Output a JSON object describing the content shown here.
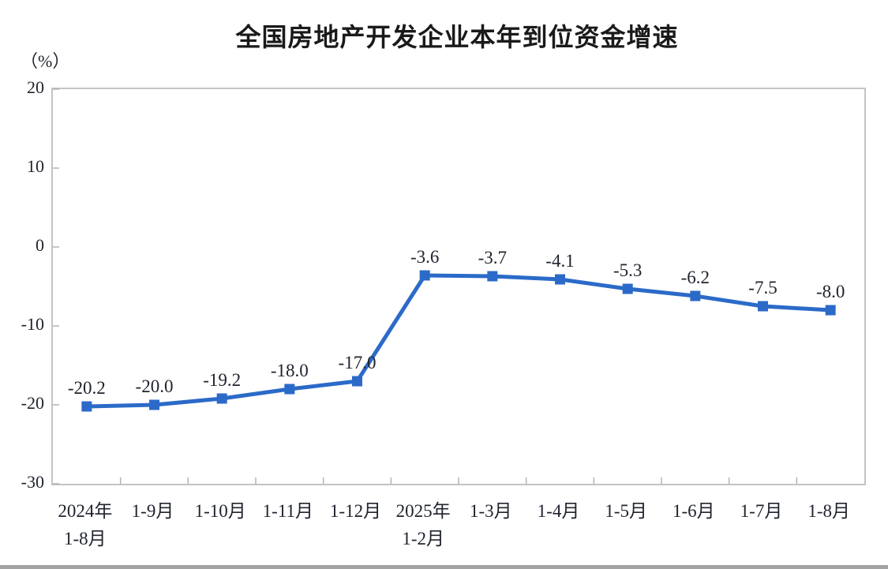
{
  "chart_data": {
    "type": "line",
    "title": "全国房地产开发企业本年到位资金增速",
    "unit_label": "（%）",
    "categories": [
      "2024年\n1-8月",
      "1-9月",
      "1-10月",
      "1-11月",
      "1-12月",
      "2025年\n1-2月",
      "1-3月",
      "1-4月",
      "1-5月",
      "1-6月",
      "1-7月",
      "1-8月"
    ],
    "values": [
      -20.2,
      -20.0,
      -19.2,
      -18.0,
      -17.0,
      -3.6,
      -3.7,
      -4.1,
      -5.3,
      -6.2,
      -7.5,
      -8.0
    ],
    "data_labels": [
      "-20.2",
      "-20.0",
      "-19.2",
      "-18.0",
      "-17.0",
      "-3.6",
      "-3.7",
      "-4.1",
      "-5.3",
      "-6.2",
      "-7.5",
      "-8.0"
    ],
    "ylim": [
      -30,
      20
    ],
    "yticks": [
      20,
      10,
      0,
      -10,
      -20,
      -30
    ],
    "line_color": "#2b6ac8",
    "marker": "square",
    "grid": false,
    "legend": false,
    "xlabel": "",
    "ylabel": "%"
  }
}
